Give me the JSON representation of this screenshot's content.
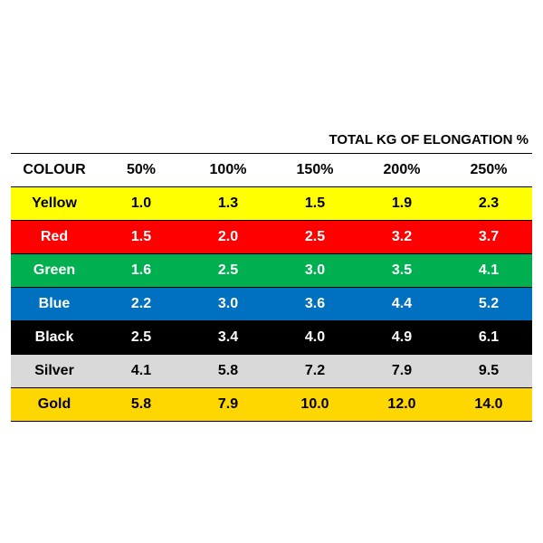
{
  "table": {
    "title": "TOTAL KG OF ELONGATION %",
    "headers": [
      "COLOUR",
      "50%",
      "100%",
      "150%",
      "200%",
      "250%"
    ],
    "rows": [
      {
        "colour": "Yellow",
        "values": [
          "1.0",
          "1.3",
          "1.5",
          "1.9",
          "2.3"
        ],
        "bg": "#ffff00",
        "fg": "#000000"
      },
      {
        "colour": "Red",
        "values": [
          "1.5",
          "2.0",
          "2.5",
          "3.2",
          "3.7"
        ],
        "bg": "#ff0000",
        "fg": "#ffffff"
      },
      {
        "colour": "Green",
        "values": [
          "1.6",
          "2.5",
          "3.0",
          "3.5",
          "4.1"
        ],
        "bg": "#00b050",
        "fg": "#ffffff"
      },
      {
        "colour": "Blue",
        "values": [
          "2.2",
          "3.0",
          "3.6",
          "4.4",
          "5.2"
        ],
        "bg": "#0070c0",
        "fg": "#ffffff"
      },
      {
        "colour": "Black",
        "values": [
          "2.5",
          "3.4",
          "4.0",
          "4.9",
          "6.1"
        ],
        "bg": "#000000",
        "fg": "#ffffff"
      },
      {
        "colour": "Silver",
        "values": [
          "4.1",
          "5.8",
          "7.2",
          "7.9",
          "9.5"
        ],
        "bg": "#d9d9d9",
        "fg": "#000000"
      },
      {
        "colour": "Gold",
        "values": [
          "5.8",
          "7.9",
          "10.0",
          "12.0",
          "14.0"
        ],
        "bg": "#ffd700",
        "fg": "#000000"
      }
    ]
  }
}
